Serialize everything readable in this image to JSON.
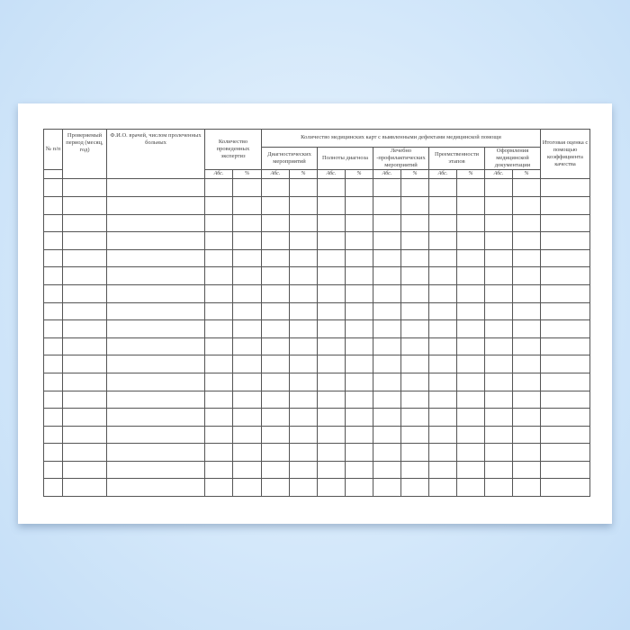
{
  "form": {
    "headers": {
      "num": "№ п/п",
      "period": "Проверяемый период (месяц, год)",
      "doctor": "Ф.И.О. врачей, числом пролеченных больных",
      "expertise_count": "Количество проведенных экспертиз",
      "defects_group": "Количество медицинских карт с выявленными дефектами медицинской помощи",
      "diagnostic": "Диагностических мероприятий",
      "diagnosis_completeness": "Полноты диагноза",
      "treatment": "Лечебно -профилактических мероприятий",
      "continuity": "Преемственности этапов",
      "documentation": "Оформления медицинской документации",
      "final_score": "Итоговая оценка с помощью коэффициента качества"
    },
    "sub_abs": "Абс.",
    "sub_pct": "%",
    "empty_rows": 18
  }
}
